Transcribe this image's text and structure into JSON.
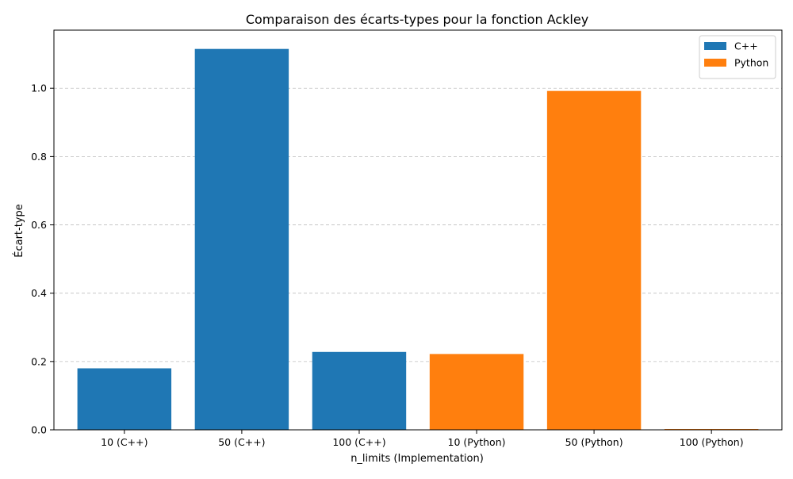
{
  "chart_data": {
    "type": "bar",
    "title": "Comparaison des écarts-types pour la fonction Ackley",
    "xlabel": "n_limits (Implementation)",
    "ylabel": "Écart-type",
    "categories": [
      "10 (C++)",
      "50 (C++)",
      "100 (C++)",
      "10 (Python)",
      "50 (Python)",
      "100 (Python)"
    ],
    "values": [
      0.18,
      1.115,
      0.228,
      0.222,
      0.992,
      0.002
    ],
    "bar_series": [
      0,
      0,
      0,
      1,
      1,
      1
    ],
    "series": [
      {
        "name": "C++",
        "color": "#1f77b4"
      },
      {
        "name": "Python",
        "color": "#ff7f0e"
      }
    ],
    "ylim": [
      0,
      1.17
    ],
    "yticks": [
      "0.0",
      "0.2",
      "0.4",
      "0.6",
      "0.8",
      "1.0"
    ],
    "grid": "y-dashed",
    "legend_position": "top-right"
  }
}
